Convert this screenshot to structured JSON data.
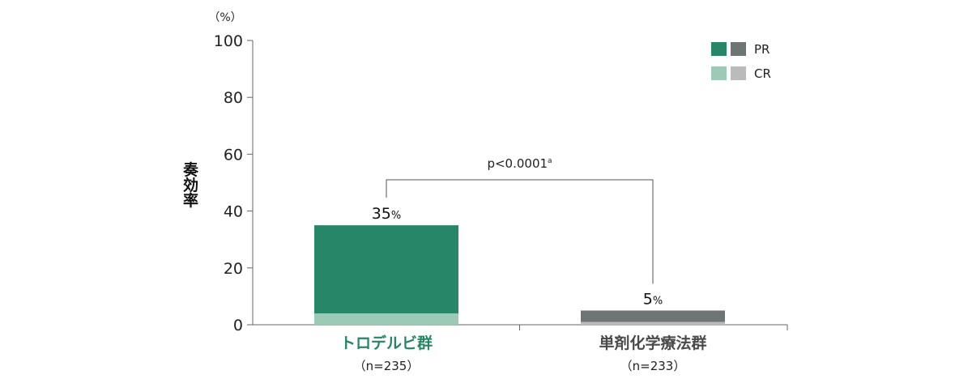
{
  "chart_data": {
    "type": "bar",
    "stacked": true,
    "y_unit": "（%）",
    "ylabel": "奏効率",
    "ylim": [
      0,
      100
    ],
    "yticks": [
      0,
      20,
      40,
      60,
      80,
      100
    ],
    "categories": [
      {
        "name": "トロデルビ群",
        "n": "（n=235）",
        "color": "#268667"
      },
      {
        "name": "単剤化学療法群",
        "n": "（n=233）",
        "color": "#4a4a4a"
      }
    ],
    "series": [
      {
        "name": "CR",
        "values": [
          4,
          1
        ],
        "colors": [
          "#9dc9b7",
          "#b9bcbb"
        ]
      },
      {
        "name": "PR",
        "values": [
          31,
          4
        ],
        "colors": [
          "#268667",
          "#6f7574"
        ]
      }
    ],
    "totals": [
      "35",
      "5"
    ],
    "total_suffix": "%",
    "significance": {
      "text": "p<0.0001",
      "superscript": "a"
    },
    "legend": {
      "placement": "top-right",
      "entries": [
        {
          "label": "PR",
          "colors": [
            "#268667",
            "#6f7574"
          ]
        },
        {
          "label": "CR",
          "colors": [
            "#9dc9b7",
            "#b9bcbb"
          ]
        }
      ]
    },
    "grid": false
  }
}
